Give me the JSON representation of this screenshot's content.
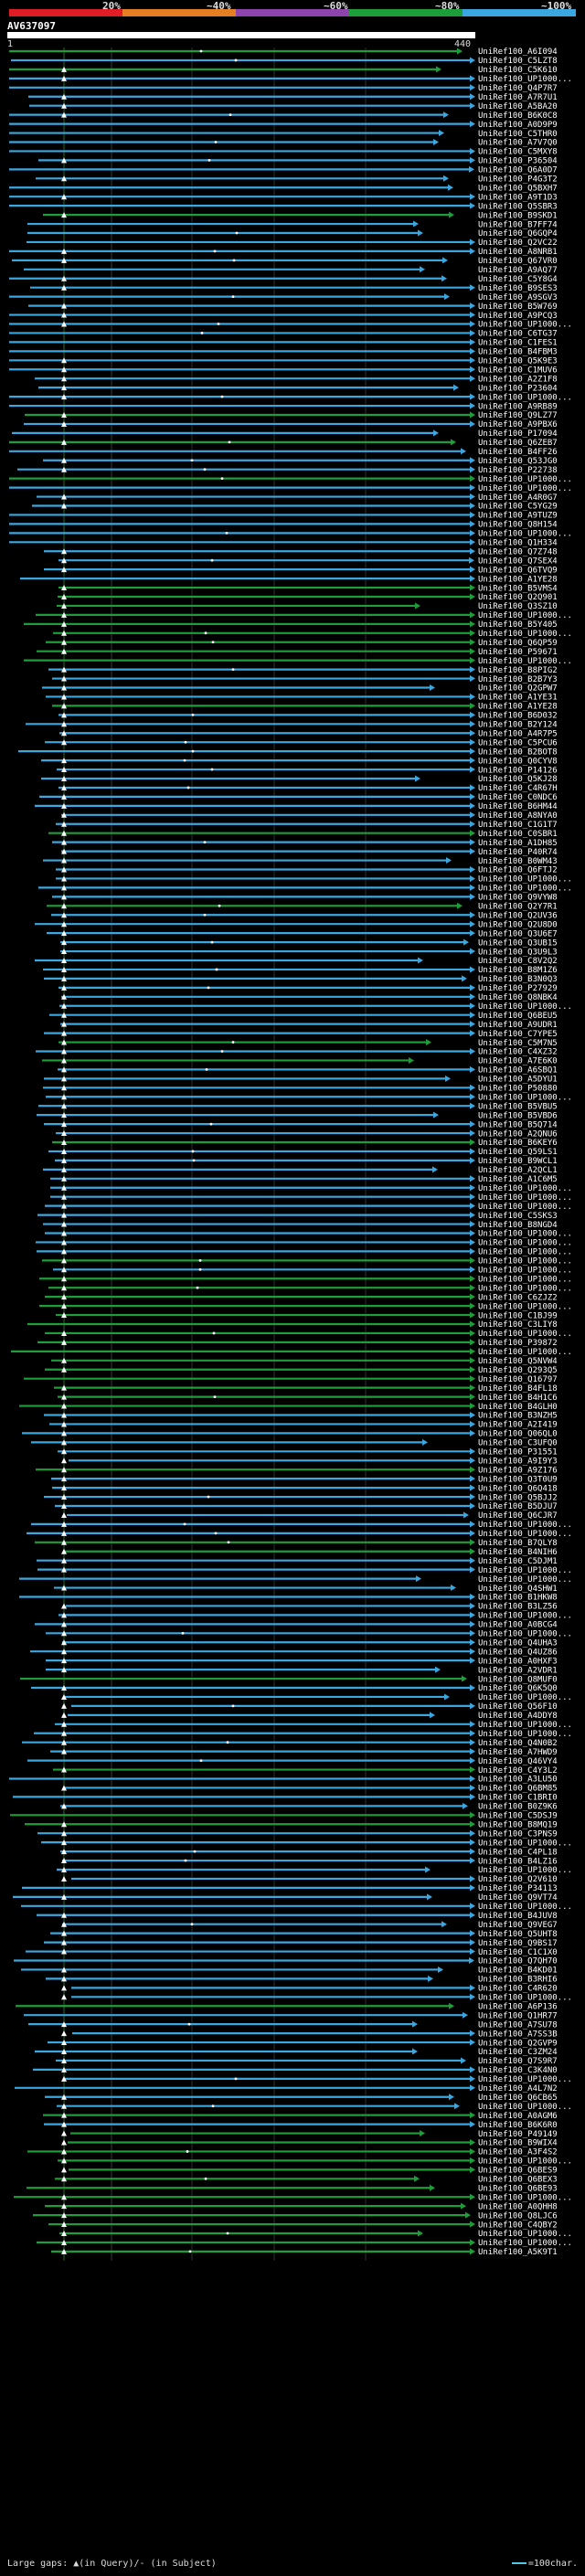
{
  "legend": {
    "percent_labels": [
      "20%",
      "~40%",
      "~60%",
      "~80%",
      "~100%"
    ],
    "colors": [
      "#e01c24",
      "#e67e22",
      "#8e44ad",
      "#1e9e3a",
      "#3aa7e0"
    ]
  },
  "query": {
    "id": "AV637097",
    "start_label": "1",
    "end_label": "440"
  },
  "hits": [
    "UniRef100_A6I094",
    "UniRef100_C5LZT8",
    "UniRef100_C5K610",
    "UniRef100_UP1000...",
    "UniRef100_Q4P7R7",
    "UniRef100_A7R7U1",
    "UniRef100_A5BA20",
    "UniRef100_B6K0C8",
    "UniRef100_A0D9P9",
    "UniRef100_C5THR0",
    "UniRef100_A7V7Q0",
    "UniRef100_C5MXY8",
    "UniRef100_P36504",
    "UniRef100_Q6A0D7",
    "UniRef100_P4G3T2",
    "UniRef100_Q5BXH7",
    "UniRef100_A9T1D3",
    "UniRef100_Q5SBR3",
    "UniRef100_B9SKD1",
    "UniRef100_B7FF74",
    "UniRef100_Q6GQP4",
    "UniRef100_Q2VC22",
    "UniRef100_A8NRB1",
    "UniRef100_Q67VR0",
    "UniRef100_A9AQ77",
    "UniRef100_C5Y8G4",
    "UniRef100_B9SES3",
    "UniRef100_A9SGV3",
    "UniRef100_B5W769",
    "UniRef100_A9PCQ3",
    "UniRef100_UP1000...",
    "UniRef100_C6TG37",
    "UniRef100_C1FES1",
    "UniRef100_B4FBM3",
    "UniRef100_Q5K9E3",
    "UniRef100_C1MUV6",
    "UniRef100_A2Z1F8",
    "UniRef100_P23604",
    "UniRef100_UP1000...",
    "UniRef100_A9RB89",
    "UniRef100_Q9LZ77",
    "UniRef100_A9PBX6",
    "UniRef100_P17094",
    "UniRef100_Q6ZEB7",
    "UniRef100_B4FF26",
    "UniRef100_Q53JG0",
    "UniRef100_P22738",
    "UniRef100_UP1000...",
    "UniRef100_UP1000...",
    "UniRef100_A4R0G7",
    "UniRef100_C5YG29",
    "UniRef100_A9TUZ9",
    "UniRef100_Q8H154",
    "UniRef100_UP1000...",
    "UniRef100_Q1H334",
    "UniRef100_Q7Z748",
    "UniRef100_Q7SEX4",
    "UniRef100_Q6TVQ9",
    "UniRef100_A1YE28",
    "UniRef100_B5VMS4",
    "UniRef100_Q2Q901",
    "UniRef100_Q3SZ10",
    "UniRef100_UP1000...",
    "UniRef100_B5Y405",
    "UniRef100_UP1000...",
    "UniRef100_Q6QP59",
    "UniRef100_P59671",
    "UniRef100_UP1000...",
    "UniRef100_B8PIG2",
    "UniRef100_B2B7Y3",
    "UniRef100_Q2GPW7",
    "UniRef100_A1YE31",
    "UniRef100_A1YE28",
    "UniRef100_B6D032",
    "UniRef100_B2Y124",
    "UniRef100_A4R7P5",
    "UniRef100_C5PCU6",
    "UniRef100_B2BOT8",
    "UniRef100_Q0CYV8",
    "UniRef100_P14126",
    "UniRef100_Q5KJ28",
    "UniRef100_C4R67H",
    "UniRef100_C0NDC6",
    "UniRef100_B6HM44",
    "UniRef100_A8NYA0",
    "UniRef100_C1G1T7",
    "UniRef100_C0SBR1",
    "UniRef100_A1DH85",
    "UniRef100_P40R74",
    "UniRef100_B0WM43",
    "UniRef100_Q6FTJ2",
    "UniRef100_UP1000...",
    "UniRef100_UP1000...",
    "UniRef100_Q9VYW8",
    "UniRef100_Q2Y7R1",
    "UniRef100_Q2UV36",
    "UniRef100_Q2U8D0",
    "UniRef100_Q3U6E7",
    "UniRef100_Q3UB15",
    "UniRef100_Q3U9L3",
    "UniRef100_C8V2Q2",
    "UniRef100_B8M1Z6",
    "UniRef100_B3N0Q3",
    "UniRef100_P27929",
    "UniRef100_Q8NBK4",
    "UniRef100_UP1000...",
    "UniRef100_Q6BEU5",
    "UniRef100_A9UDR1",
    "UniRef100_C7YPE5",
    "UniRef100_C5M7N5",
    "UniRef100_C4XZ32",
    "UniRef100_A7E6K0",
    "UniRef100_A6SBQ1",
    "UniRef100_A5DYU1",
    "UniRef100_P50880",
    "UniRef100_UP1000...",
    "UniRef100_B5VBU5",
    "UniRef100_B5VBD6",
    "UniRef100_B5Q714",
    "UniRef100_A2QNU6",
    "UniRef100_B6KEY6",
    "UniRef100_Q59LS1",
    "UniRef100_B9WCL1",
    "UniRef100_A2QCL1",
    "UniRef100_A1C6M5",
    "UniRef100_UP1000...",
    "UniRef100_UP1000...",
    "UniRef100_UP1000...",
    "UniRef100_C5SKS3",
    "UniRef100_B8NGD4",
    "UniRef100_UP1000...",
    "UniRef100_UP1000...",
    "UniRef100_UP1000...",
    "UniRef100_UP1000...",
    "UniRef100_UP1000...",
    "UniRef100_UP1000...",
    "UniRef100_UP1000...",
    "UniRef100_C6ZJZ2",
    "UniRef100_UP1000...",
    "UniRef100_C1BJ99",
    "UniRef100_C3LIY8",
    "UniRef100_UP1000...",
    "UniRef100_P39872",
    "UniRef100_UP1000...",
    "UniRef100_Q5NVW4",
    "UniRef100_Q293Q5",
    "UniRef100_Q16797",
    "UniRef100_B4FL18",
    "UniRef100_B4H1C6",
    "UniRef100_B4GLH0",
    "UniRef100_B3NZH5",
    "UniRef100_A2I419",
    "UniRef100_Q06QL0",
    "UniRef100_C3UFQ0",
    "UniRef100_P31551",
    "UniRef100_A9I9Y3",
    "UniRef100_A9Z176",
    "UniRef100_Q3T0U9",
    "UniRef100_Q6Q418",
    "UniRef100_Q5BJJ2",
    "UniRef100_B5DJU7",
    "UniRef100_Q6CJR7",
    "UniRef100_UP1000...",
    "UniRef100_UP1000...",
    "UniRef100_B7QLY8",
    "UniRef100_B4NIH6",
    "UniRef100_C5DJM1",
    "UniRef100_UP1000...",
    "UniRef100_UP1000...",
    "UniRef100_Q4SHW1",
    "UniRef100_B1HKW8",
    "UniRef100_B3LZ56",
    "UniRef100_UP1000...",
    "UniRef100_A0BCG4",
    "UniRef100_UP1000...",
    "UniRef100_Q4UHA3",
    "UniRef100_Q4UZ86",
    "UniRef100_A0HXF3",
    "UniRef100_A2VDR1",
    "UniRef100_Q8MUF0",
    "UniRef100_Q6K5Q0",
    "UniRef100_UP1000...",
    "UniRef100_Q56F10",
    "UniRef100_A4DDY8",
    "UniRef100_UP1000...",
    "UniRef100_UP1000...",
    "UniRef100_Q4N0B2",
    "UniRef100_A7HWD9",
    "UniRef100_Q46VY4",
    "UniRef100_C4Y3L2",
    "UniRef100_A3LU50",
    "UniRef100_Q6BM85",
    "UniRef100_C1BRI0",
    "UniRef100_B0Z9K6",
    "UniRef100_C5DSJ9",
    "UniRef100_B8MQ19",
    "UniRef100_C3PNS9",
    "UniRef100_UP1000...",
    "UniRef100_C4PL18",
    "UniRef100_B4LZ16",
    "UniRef100_UP1000...",
    "UniRef100_Q2V610",
    "UniRef100_P34113",
    "UniRef100_Q9VT74",
    "UniRef100_UP1000...",
    "UniRef100_B4JUV8",
    "UniRef100_Q9VEG7",
    "UniRef100_Q5UHT8",
    "UniRef100_Q9BS17",
    "UniRef100_C1C1X0",
    "UniRef100_Q7QH70",
    "UniRef100_B4KD01",
    "UniRef100_B3RHI6",
    "UniRef100_C4R620",
    "UniRef100_UP1000...",
    "UniRef100_A6P136",
    "UniRef100_Q1HR77",
    "UniRef100_A7SU78",
    "UniRef100_A7SS3B",
    "UniRef100_Q2GVP9",
    "UniRef100_C3ZM24",
    "UniRef100_Q7S9R7",
    "UniRef100_C3K4N0",
    "UniRef100_UP1000...",
    "UniRef100_A4L7N2",
    "UniRef100_Q6CB65",
    "UniRef100_UP1000...",
    "UniRef100_A0AGM6",
    "UniRef100_B6K6R0",
    "UniRef100_P49149",
    "UniRef100_B9WIX4",
    "UniRef100_A3F4S2",
    "UniRef100_UP1000...",
    "UniRef100_Q6BES9",
    "UniRef100_Q6BEX3",
    "UniRef100_Q6BE93",
    "UniRef100_UP1000...",
    "UniRef100_A0QHH8",
    "UniRef100_Q8LJC6",
    "UniRef100_C4QBY2",
    "UniRef100_UP1000...",
    "UniRef100_UP1000...",
    "UniRef100_A5K9T1"
  ],
  "footer": {
    "gaps_label": "Large gaps: ▲(in Query)/- (in Subject)",
    "scale_label": "=100char."
  }
}
